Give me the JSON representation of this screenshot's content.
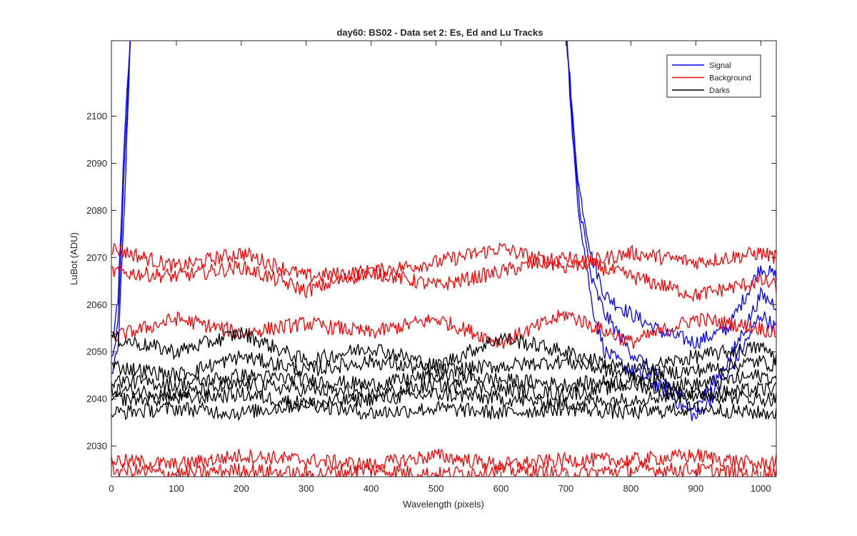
{
  "chart_data": {
    "type": "line",
    "title": "day60: BS02 - Data set 2: Es, Ed and Lu Tracks",
    "xlabel": "Wavelength (pixels)",
    "ylabel": "LuBot (ADU)",
    "xlim": [
      0,
      1024
    ],
    "ylim": [
      2023.5,
      2116
    ],
    "xticks": [
      0,
      100,
      200,
      300,
      400,
      500,
      600,
      700,
      800,
      900,
      1000
    ],
    "yticks": [
      2030,
      2040,
      2050,
      2060,
      2070,
      2080,
      2090,
      2100
    ],
    "grid": false,
    "legend": {
      "position": "top-right",
      "entries": [
        "Signal",
        "Background",
        "Darks"
      ]
    },
    "colors": {
      "Signal": "#0000ff",
      "Background": "#ff0000",
      "Darks": "#000000"
    },
    "series": [
      {
        "group": "Signal",
        "x": [
          0,
          10,
          20,
          25,
          30,
          40,
          50,
          600,
          700,
          710,
          720,
          740,
          760,
          800,
          850,
          900,
          950,
          1000,
          1024
        ],
        "y": [
          2045,
          2050,
          2080,
          2100,
          2120,
          2120,
          2120,
          2120,
          2120,
          2100,
          2085,
          2070,
          2062,
          2058,
          2054,
          2052,
          2055,
          2068,
          2066
        ]
      },
      {
        "group": "Signal",
        "x": [
          0,
          10,
          20,
          30,
          40,
          50,
          700,
          710,
          720,
          740,
          760,
          800,
          850,
          900,
          950,
          1000,
          1024
        ],
        "y": [
          2048,
          2055,
          2090,
          2120,
          2120,
          2120,
          2120,
          2095,
          2080,
          2060,
          2050,
          2046,
          2042,
          2036,
          2045,
          2058,
          2055
        ]
      },
      {
        "group": "Signal",
        "x": [
          0,
          10,
          20,
          30,
          40,
          50,
          700,
          710,
          720,
          740,
          760,
          800,
          850,
          900,
          950,
          1000,
          1024
        ],
        "y": [
          2052,
          2060,
          2095,
          2120,
          2120,
          2120,
          2120,
          2098,
          2082,
          2065,
          2058,
          2050,
          2044,
          2038,
          2048,
          2062,
          2060
        ]
      },
      {
        "group": "Background",
        "x": [
          0,
          100,
          200,
          300,
          400,
          500,
          600,
          700,
          800,
          900,
          1000,
          1024
        ],
        "y": [
          2072,
          2068,
          2071,
          2066,
          2067,
          2069,
          2072,
          2068,
          2071,
          2069,
          2071,
          2070
        ]
      },
      {
        "group": "Background",
        "x": [
          0,
          100,
          200,
          300,
          400,
          500,
          600,
          700,
          800,
          900,
          1000,
          1024
        ],
        "y": [
          2067,
          2066,
          2068,
          2063,
          2067,
          2064,
          2067,
          2070,
          2066,
          2062,
          2065,
          2064
        ]
      },
      {
        "group": "Background",
        "x": [
          0,
          100,
          200,
          300,
          400,
          500,
          600,
          700,
          800,
          900,
          1000,
          1024
        ],
        "y": [
          2053,
          2057,
          2054,
          2056,
          2054,
          2057,
          2052,
          2058,
          2052,
          2057,
          2055,
          2054
        ]
      },
      {
        "group": "Background",
        "x": [
          0,
          100,
          200,
          300,
          400,
          500,
          600,
          700,
          800,
          900,
          1000,
          1024
        ],
        "y": [
          2027,
          2026,
          2028,
          2027,
          2026,
          2028,
          2026,
          2027,
          2027,
          2028,
          2026,
          2027
        ]
      },
      {
        "group": "Background",
        "x": [
          0,
          100,
          200,
          300,
          400,
          500,
          600,
          700,
          800,
          900,
          1000,
          1024
        ],
        "y": [
          2025,
          2024,
          2025,
          2024,
          2025,
          2024,
          2025,
          2024,
          2025,
          2025,
          2024,
          2025
        ]
      },
      {
        "group": "Darks",
        "x": [
          0,
          100,
          200,
          300,
          400,
          500,
          600,
          700,
          800,
          900,
          1000,
          1024
        ],
        "y": [
          2053,
          2050,
          2054,
          2048,
          2051,
          2047,
          2053,
          2050,
          2046,
          2049,
          2051,
          2049
        ]
      },
      {
        "group": "Darks",
        "x": [
          0,
          100,
          200,
          300,
          400,
          500,
          600,
          700,
          800,
          900,
          1000,
          1024
        ],
        "y": [
          2047,
          2045,
          2049,
          2046,
          2048,
          2046,
          2047,
          2048,
          2045,
          2046,
          2048,
          2047
        ]
      },
      {
        "group": "Darks",
        "x": [
          0,
          100,
          200,
          300,
          400,
          500,
          600,
          700,
          800,
          900,
          1000,
          1024
        ],
        "y": [
          2044,
          2043,
          2045,
          2044,
          2043,
          2045,
          2044,
          2043,
          2044,
          2043,
          2045,
          2044
        ]
      },
      {
        "group": "Darks",
        "x": [
          0,
          100,
          200,
          300,
          400,
          500,
          600,
          700,
          800,
          900,
          1000,
          1024
        ],
        "y": [
          2042,
          2041,
          2043,
          2042,
          2041,
          2043,
          2042,
          2041,
          2043,
          2041,
          2042,
          2042
        ]
      },
      {
        "group": "Darks",
        "x": [
          0,
          100,
          200,
          300,
          400,
          500,
          600,
          700,
          800,
          900,
          1000,
          1024
        ],
        "y": [
          2040,
          2040,
          2041,
          2039,
          2040,
          2041,
          2040,
          2039,
          2040,
          2041,
          2040,
          2040
        ]
      },
      {
        "group": "Darks",
        "x": [
          0,
          100,
          200,
          300,
          400,
          500,
          600,
          700,
          800,
          900,
          1000,
          1024
        ],
        "y": [
          2037,
          2038,
          2037,
          2039,
          2037,
          2038,
          2037,
          2038,
          2037,
          2038,
          2037,
          2037
        ]
      }
    ]
  }
}
